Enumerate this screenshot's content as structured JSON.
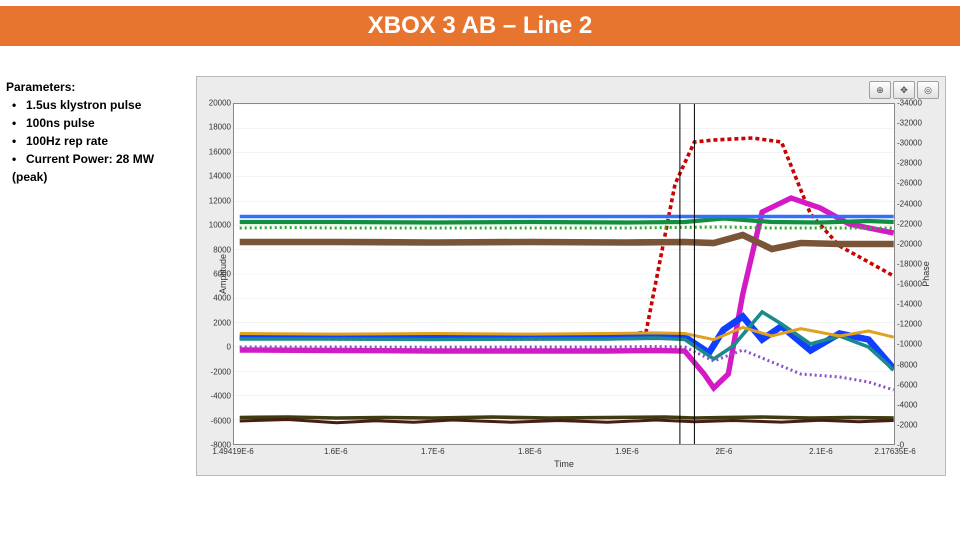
{
  "title": "XBOX 3 AB – Line 2",
  "title_bar_bg": "#e8752f",
  "parameters": {
    "heading": "Parameters:",
    "items": [
      "1.5us klystron pulse",
      "100ns pulse",
      "100Hz rep rate",
      "Current Power: 28 MW (peak)"
    ]
  },
  "chart": {
    "panel_bg": "#ececec",
    "plot_bg": "#ffffff",
    "grid_color": "#e0e0e0",
    "border_color": "#888888",
    "xlabel": "Time",
    "ylabel_left": "Amplitude",
    "ylabel_right": "Phase",
    "axis_font_size": 9,
    "tick_font_size": 8,
    "xlim": [
      1.4941,
      2.1763
    ],
    "ylim_left": [
      -8000,
      20000
    ],
    "ylim_right": [
      0,
      34000
    ],
    "yticks_left": [
      -8000,
      -6000,
      -4000,
      -2000,
      0,
      2000,
      4000,
      6000,
      8000,
      10000,
      12000,
      14000,
      16000,
      18000,
      20000
    ],
    "yticks_right": [
      0,
      2000,
      4000,
      6000,
      8000,
      10000,
      12000,
      14000,
      16000,
      18000,
      20000,
      22000,
      24000,
      26000,
      28000,
      30000,
      32000,
      34000
    ],
    "xticks": [
      {
        "v": 1.4941,
        "l": "1.49419E-6"
      },
      {
        "v": 1.6,
        "l": "1.6E-6"
      },
      {
        "v": 1.7,
        "l": "1.7E-6"
      },
      {
        "v": 1.8,
        "l": "1.8E-6"
      },
      {
        "v": 1.9,
        "l": "1.9E-6"
      },
      {
        "v": 2.0,
        "l": "2E-6"
      },
      {
        "v": 2.1,
        "l": "2.1E-6"
      },
      {
        "v": 2.1763,
        "l": "2.17635E-6"
      }
    ],
    "cursor_x": [
      1.955,
      1.97
    ],
    "series": [
      {
        "name": "red-dash",
        "color": "#cc0000",
        "width": 1.2,
        "dash": "4,3",
        "axis": "right",
        "pts": [
          [
            1.5,
            10600
          ],
          [
            1.55,
            10600
          ],
          [
            1.6,
            10500
          ],
          [
            1.7,
            10500
          ],
          [
            1.8,
            10500
          ],
          [
            1.88,
            10600
          ],
          [
            1.92,
            11200
          ],
          [
            1.95,
            26000
          ],
          [
            1.97,
            30200
          ],
          [
            1.99,
            30400
          ],
          [
            2.03,
            30600
          ],
          [
            2.06,
            30200
          ],
          [
            2.09,
            23000
          ],
          [
            2.12,
            19800
          ],
          [
            2.15,
            18200
          ],
          [
            2.176,
            16800
          ]
        ]
      },
      {
        "name": "magenta",
        "color": "#d41ac5",
        "width": 1.8,
        "dash": "",
        "axis": "right",
        "pts": [
          [
            1.5,
            9400
          ],
          [
            1.6,
            9350
          ],
          [
            1.7,
            9300
          ],
          [
            1.8,
            9300
          ],
          [
            1.88,
            9300
          ],
          [
            1.93,
            9350
          ],
          [
            1.96,
            9300
          ],
          [
            1.98,
            7000
          ],
          [
            1.99,
            5600
          ],
          [
            2.005,
            7000
          ],
          [
            2.02,
            15000
          ],
          [
            2.04,
            23200
          ],
          [
            2.07,
            24600
          ],
          [
            2.1,
            23600
          ],
          [
            2.13,
            22000
          ],
          [
            2.176,
            21100
          ]
        ]
      },
      {
        "name": "blue",
        "color": "#1040ff",
        "width": 2.2,
        "dash": "",
        "axis": "left",
        "pts": [
          [
            1.5,
            800
          ],
          [
            1.6,
            820
          ],
          [
            1.7,
            800
          ],
          [
            1.8,
            780
          ],
          [
            1.88,
            780
          ],
          [
            1.93,
            840
          ],
          [
            1.96,
            820
          ],
          [
            1.985,
            -500
          ],
          [
            2.0,
            1400
          ],
          [
            2.02,
            2500
          ],
          [
            2.04,
            600
          ],
          [
            2.06,
            1700
          ],
          [
            2.09,
            -300
          ],
          [
            2.12,
            1100
          ],
          [
            2.15,
            600
          ],
          [
            2.176,
            -1800
          ]
        ]
      },
      {
        "name": "green",
        "color": "#118f3f",
        "width": 1.4,
        "dash": "",
        "axis": "right",
        "pts": [
          [
            1.5,
            22200
          ],
          [
            1.6,
            22200
          ],
          [
            1.7,
            22150
          ],
          [
            1.8,
            22200
          ],
          [
            1.9,
            22150
          ],
          [
            1.96,
            22200
          ],
          [
            2.0,
            22550
          ],
          [
            2.05,
            22200
          ],
          [
            2.1,
            22150
          ],
          [
            2.15,
            22300
          ],
          [
            2.176,
            22200
          ]
        ]
      },
      {
        "name": "teal",
        "color": "#1a8a8a",
        "width": 1.2,
        "dash": "",
        "axis": "right",
        "pts": [
          [
            1.5,
            10500
          ],
          [
            1.6,
            10500
          ],
          [
            1.7,
            10450
          ],
          [
            1.8,
            10500
          ],
          [
            1.88,
            10500
          ],
          [
            1.93,
            10600
          ],
          [
            1.96,
            10450
          ],
          [
            1.99,
            8500
          ],
          [
            2.01,
            9800
          ],
          [
            2.04,
            13200
          ],
          [
            2.06,
            12000
          ],
          [
            2.09,
            10000
          ],
          [
            2.12,
            10800
          ],
          [
            2.15,
            9700
          ],
          [
            2.176,
            7400
          ]
        ]
      },
      {
        "name": "brown",
        "color": "#7a5437",
        "width": 2.2,
        "dash": "",
        "axis": "right",
        "pts": [
          [
            1.5,
            20200
          ],
          [
            1.6,
            20200
          ],
          [
            1.7,
            20150
          ],
          [
            1.8,
            20200
          ],
          [
            1.9,
            20150
          ],
          [
            1.96,
            20200
          ],
          [
            1.99,
            20100
          ],
          [
            2.02,
            20900
          ],
          [
            2.05,
            19500
          ],
          [
            2.08,
            20100
          ],
          [
            2.12,
            20000
          ],
          [
            2.176,
            20000
          ]
        ]
      },
      {
        "name": "blue-flat",
        "color": "#3070ff",
        "width": 1.2,
        "dash": "",
        "axis": "right",
        "pts": [
          [
            1.5,
            22750
          ],
          [
            1.7,
            22750
          ],
          [
            1.9,
            22750
          ],
          [
            2.0,
            22750
          ],
          [
            2.1,
            22750
          ],
          [
            2.176,
            22750
          ]
        ]
      },
      {
        "name": "green-dot",
        "color": "#2fa82f",
        "width": 1,
        "dash": "2,3",
        "axis": "right",
        "pts": [
          [
            1.5,
            21600
          ],
          [
            1.55,
            21650
          ],
          [
            1.6,
            21600
          ],
          [
            1.7,
            21600
          ],
          [
            1.8,
            21600
          ],
          [
            1.9,
            21600
          ],
          [
            2.0,
            21700
          ],
          [
            2.05,
            21600
          ],
          [
            2.1,
            21600
          ],
          [
            2.176,
            21600
          ]
        ]
      },
      {
        "name": "orange",
        "color": "#e0a020",
        "width": 1,
        "dash": "",
        "axis": "left",
        "pts": [
          [
            1.5,
            1100
          ],
          [
            1.6,
            1050
          ],
          [
            1.7,
            1100
          ],
          [
            1.8,
            1050
          ],
          [
            1.88,
            1100
          ],
          [
            1.93,
            1150
          ],
          [
            1.96,
            1100
          ],
          [
            1.99,
            600
          ],
          [
            2.02,
            1600
          ],
          [
            2.05,
            900
          ],
          [
            2.08,
            1500
          ],
          [
            2.12,
            900
          ],
          [
            2.15,
            1300
          ],
          [
            2.176,
            800
          ]
        ]
      },
      {
        "name": "purple-dot",
        "color": "#8a4fc9",
        "width": 1,
        "dash": "2,3",
        "axis": "right",
        "pts": [
          [
            1.5,
            9700
          ],
          [
            1.6,
            9700
          ],
          [
            1.7,
            9680
          ],
          [
            1.8,
            9700
          ],
          [
            1.88,
            9700
          ],
          [
            1.93,
            9750
          ],
          [
            1.96,
            9700
          ],
          [
            1.99,
            8300
          ],
          [
            2.02,
            9400
          ],
          [
            2.05,
            8200
          ],
          [
            2.08,
            7000
          ],
          [
            2.12,
            6700
          ],
          [
            2.15,
            6200
          ],
          [
            2.176,
            5400
          ]
        ]
      },
      {
        "name": "dark-olive",
        "color": "#3f3b12",
        "width": 1.2,
        "dash": "",
        "axis": "right",
        "pts": [
          [
            1.5,
            2650
          ],
          [
            1.55,
            2700
          ],
          [
            1.6,
            2600
          ],
          [
            1.65,
            2650
          ],
          [
            1.7,
            2600
          ],
          [
            1.76,
            2700
          ],
          [
            1.82,
            2600
          ],
          [
            1.88,
            2650
          ],
          [
            1.94,
            2700
          ],
          [
            1.97,
            2600
          ],
          [
            2.0,
            2650
          ],
          [
            2.04,
            2700
          ],
          [
            2.09,
            2600
          ],
          [
            2.13,
            2650
          ],
          [
            2.176,
            2600
          ]
        ]
      },
      {
        "name": "dark-red-noise",
        "color": "#4a1d14",
        "width": 1,
        "dash": "",
        "axis": "right",
        "pts": [
          [
            1.5,
            2300
          ],
          [
            1.55,
            2450
          ],
          [
            1.6,
            2120
          ],
          [
            1.64,
            2320
          ],
          [
            1.68,
            2180
          ],
          [
            1.72,
            2400
          ],
          [
            1.78,
            2180
          ],
          [
            1.83,
            2350
          ],
          [
            1.88,
            2180
          ],
          [
            1.93,
            2400
          ],
          [
            1.97,
            2220
          ],
          [
            2.01,
            2350
          ],
          [
            2.06,
            2190
          ],
          [
            2.1,
            2380
          ],
          [
            2.14,
            2220
          ],
          [
            2.176,
            2350
          ]
        ]
      }
    ],
    "tool_icons": [
      "zoom-icon",
      "pan-icon",
      "cursor-icon"
    ]
  }
}
